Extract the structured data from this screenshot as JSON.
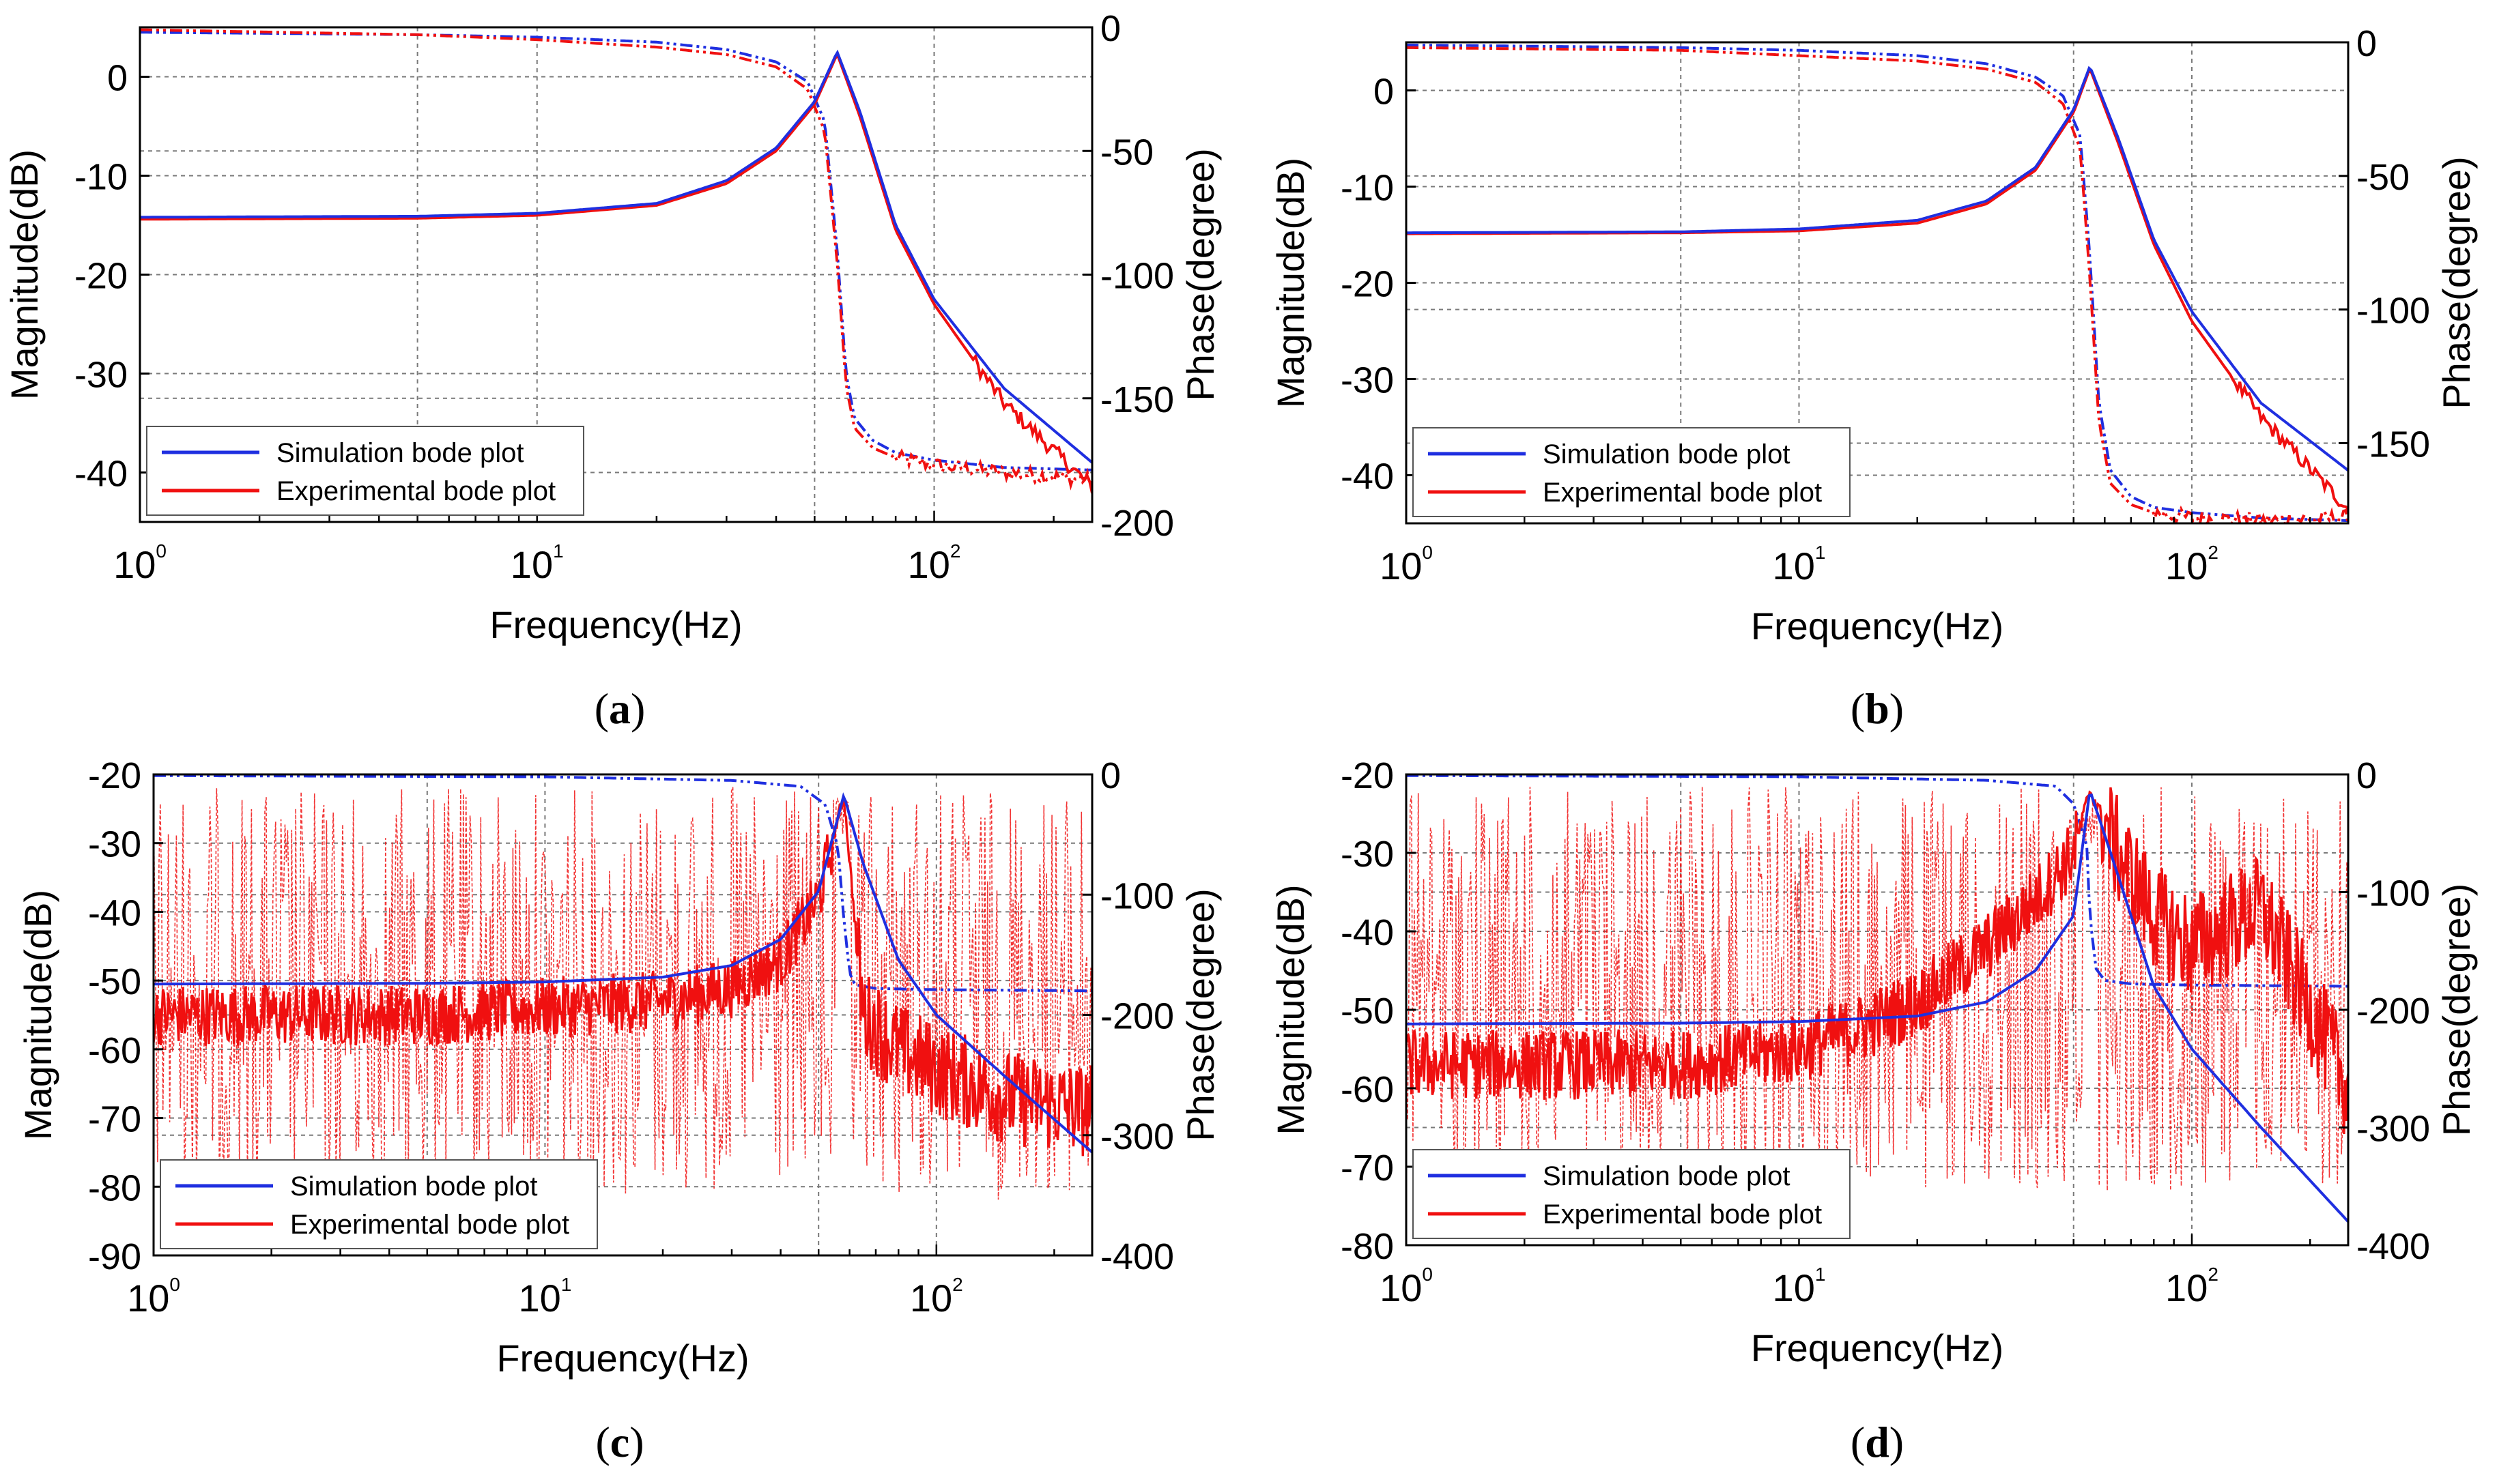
{
  "figure": {
    "colors": {
      "simulation": "#1f2fe0",
      "experimental": "#f01010",
      "grid": "#7a7a7a",
      "axis": "#000000"
    },
    "panels": [
      {
        "caption": "(a)",
        "caption_letter": "a"
      },
      {
        "caption": "(b)",
        "caption_letter": "b"
      },
      {
        "caption": "(c)",
        "caption_letter": "c"
      },
      {
        "caption": "(d)",
        "caption_letter": "d"
      }
    ]
  },
  "chart_data": [
    {
      "panel": "a",
      "type": "line",
      "xscale": "log",
      "xlim": [
        1,
        250
      ],
      "x_ticks": [
        "10^0",
        "10^1",
        "10^2"
      ],
      "xlabel": "Frequency(Hz)",
      "ylabel_left": "Magnitude(dB)",
      "ylabel_right": "Phase(degree)",
      "ylim_left": [
        -45,
        5
      ],
      "ylim_right": [
        -200,
        0
      ],
      "yticks_left": [
        0,
        -10,
        -20,
        -30,
        -40
      ],
      "yticks_right": [
        0,
        -50,
        -100,
        -150,
        -200
      ],
      "resonance_hz": 57,
      "legend": {
        "placement": "bottom-left",
        "entries": [
          "Simulation bode plot",
          "Experimental bode plot"
        ]
      },
      "series": [
        {
          "name": "Simulation bode plot",
          "quantity": "magnitude",
          "x": [
            1,
            5,
            10,
            20,
            30,
            40,
            50,
            57,
            65,
            80,
            100,
            150,
            250
          ],
          "values": [
            -14.2,
            -14.1,
            -13.8,
            -12.8,
            -10.5,
            -7.2,
            -2.5,
            2.5,
            -3.5,
            -15,
            -22.5,
            -31.5,
            -39
          ]
        },
        {
          "name": "Experimental bode plot",
          "quantity": "magnitude",
          "x": [
            1,
            5,
            10,
            20,
            30,
            40,
            50,
            57,
            65,
            80,
            100,
            150,
            250
          ],
          "values": [
            -14.4,
            -14.3,
            -14.0,
            -13.0,
            -10.8,
            -7.5,
            -2.8,
            2.3,
            -4.0,
            -15.5,
            -23,
            -33,
            -41.5
          ]
        },
        {
          "name": "Simulation bode plot",
          "quantity": "phase",
          "x": [
            1,
            5,
            10,
            20,
            30,
            40,
            48,
            53,
            57,
            60,
            63,
            70,
            80,
            100,
            150,
            250
          ],
          "values": [
            -2,
            -3,
            -4,
            -6,
            -9,
            -14,
            -22,
            -38,
            -90,
            -140,
            -158,
            -167,
            -172,
            -175,
            -178,
            -179
          ]
        },
        {
          "name": "Experimental bode plot",
          "quantity": "phase",
          "x": [
            1,
            5,
            10,
            20,
            30,
            40,
            48,
            53,
            57,
            60,
            63,
            70,
            80,
            100,
            150,
            250
          ],
          "values": [
            -1,
            -3,
            -5,
            -8,
            -11,
            -16,
            -25,
            -42,
            -95,
            -145,
            -162,
            -170,
            -174,
            -177,
            -180,
            -183
          ]
        }
      ]
    },
    {
      "panel": "b",
      "type": "line",
      "xscale": "log",
      "xlim": [
        1,
        250
      ],
      "x_ticks": [
        "10^0",
        "10^1",
        "10^2"
      ],
      "xlabel": "Frequency(Hz)",
      "ylabel_left": "Magnitude(dB)",
      "ylabel_right": "Phase(degree)",
      "ylim_left": [
        -45,
        5
      ],
      "ylim_right": [
        -180,
        0
      ],
      "yticks_left": [
        0,
        -10,
        -20,
        -30,
        -40
      ],
      "yticks_right": [
        0,
        -50,
        -100,
        -150
      ],
      "resonance_hz": 55,
      "legend": {
        "placement": "bottom-left",
        "entries": [
          "Simulation bode plot",
          "Experimental bode plot"
        ]
      },
      "series": [
        {
          "name": "Simulation bode plot",
          "quantity": "magnitude",
          "x": [
            1,
            5,
            10,
            20,
            30,
            40,
            50,
            55,
            65,
            80,
            100,
            150,
            250
          ],
          "values": [
            -14.8,
            -14.7,
            -14.4,
            -13.5,
            -11.5,
            -8,
            -2,
            2.5,
            -5,
            -15.5,
            -23,
            -32.5,
            -39.5
          ]
        },
        {
          "name": "Experimental bode plot",
          "quantity": "magnitude",
          "x": [
            1,
            5,
            10,
            20,
            30,
            40,
            50,
            55,
            65,
            80,
            100,
            150,
            250
          ],
          "values": [
            -14.9,
            -14.8,
            -14.6,
            -13.8,
            -11.8,
            -8.3,
            -2.3,
            2.3,
            -5.5,
            -16,
            -24,
            -34,
            -43.5
          ]
        },
        {
          "name": "Simulation bode plot",
          "quantity": "phase",
          "x": [
            1,
            5,
            10,
            20,
            30,
            40,
            47,
            52,
            55,
            58,
            62,
            70,
            80,
            100,
            150,
            250
          ],
          "values": [
            -1,
            -2,
            -3,
            -5,
            -8,
            -13,
            -20,
            -35,
            -80,
            -135,
            -160,
            -170,
            -174,
            -176,
            -178,
            -179
          ]
        },
        {
          "name": "Experimental bode plot",
          "quantity": "phase",
          "x": [
            1,
            5,
            10,
            20,
            30,
            40,
            47,
            52,
            55,
            58,
            62,
            70,
            80,
            100,
            150,
            250
          ],
          "values": [
            -2,
            -3,
            -5,
            -7,
            -10,
            -15,
            -23,
            -40,
            -88,
            -142,
            -165,
            -173,
            -176,
            -178,
            -179,
            -178
          ]
        }
      ]
    },
    {
      "panel": "c",
      "type": "line",
      "xscale": "log",
      "xlim": [
        1,
        250
      ],
      "x_ticks": [
        "10^0",
        "10^1",
        "10^2"
      ],
      "xlabel": "Frequency(Hz)",
      "ylabel_left": "Magnitude(dB)",
      "ylabel_right": "Phase(degree)",
      "ylim_left": [
        -90,
        -20
      ],
      "ylim_right": [
        -400,
        0
      ],
      "yticks_left": [
        -20,
        -30,
        -40,
        -50,
        -60,
        -70,
        -80,
        -90
      ],
      "yticks_right": [
        0,
        -100,
        -200,
        -300,
        -400
      ],
      "resonance_hz": 58,
      "legend": {
        "placement": "bottom-left",
        "entries": [
          "Simulation bode plot",
          "Experimental bode plot"
        ]
      },
      "series": [
        {
          "name": "Simulation bode plot",
          "quantity": "magnitude",
          "x": [
            1,
            5,
            10,
            20,
            30,
            40,
            50,
            58,
            65,
            80,
            100,
            150,
            250
          ],
          "values": [
            -50.5,
            -50.4,
            -50.2,
            -49.5,
            -47.8,
            -44,
            -37,
            -23,
            -33,
            -47,
            -55,
            -64,
            -75
          ]
        },
        {
          "name": "Experimental bode plot",
          "quantity": "magnitude",
          "x": [
            1,
            5,
            10,
            20,
            30,
            40,
            50,
            58,
            65,
            80,
            100,
            150,
            250
          ],
          "values": [
            -55,
            -55,
            -54,
            -53,
            -51,
            -47,
            -38,
            -23,
            -55,
            -60,
            -63,
            -67,
            -69
          ]
        },
        {
          "name": "Simulation bode plot",
          "quantity": "phase",
          "x": [
            1,
            10,
            30,
            45,
            52,
            56,
            58,
            60,
            62,
            70,
            100,
            250
          ],
          "values": [
            -1,
            -2,
            -5,
            -10,
            -25,
            -60,
            -120,
            -165,
            -175,
            -178,
            -179,
            -180
          ]
        },
        {
          "name": "Experimental bode plot",
          "quantity": "phase",
          "note": "dashed, noisy; oscillates broadly between 0 and -360 degrees",
          "x": [
            1,
            10,
            40,
            58,
            100,
            250
          ],
          "values": [
            -180,
            -180,
            -180,
            -100,
            -180,
            -180
          ]
        }
      ]
    },
    {
      "panel": "d",
      "type": "line",
      "xscale": "log",
      "xlim": [
        1,
        250
      ],
      "x_ticks": [
        "10^0",
        "10^1",
        "10^2"
      ],
      "xlabel": "Frequency(Hz)",
      "ylabel_left": "Magnitude(dB)",
      "ylabel_right": "Phase(degree)",
      "ylim_left": [
        -80,
        -20
      ],
      "ylim_right": [
        -400,
        0
      ],
      "yticks_left": [
        -20,
        -30,
        -40,
        -50,
        -60,
        -70,
        -80
      ],
      "yticks_right": [
        0,
        -100,
        -200,
        -300,
        -400
      ],
      "resonance_hz": 55,
      "legend": {
        "placement": "bottom-left",
        "entries": [
          "Simulation bode plot",
          "Experimental bode plot"
        ]
      },
      "series": [
        {
          "name": "Simulation bode plot",
          "quantity": "magnitude",
          "x": [
            1,
            5,
            10,
            20,
            30,
            40,
            50,
            55,
            65,
            80,
            100,
            150,
            250
          ],
          "values": [
            -51.8,
            -51.7,
            -51.5,
            -50.8,
            -49,
            -45,
            -38,
            -22,
            -33,
            -47,
            -55,
            -65,
            -77
          ]
        },
        {
          "name": "Experimental bode plot",
          "quantity": "magnitude",
          "x": [
            1,
            5,
            10,
            15,
            20,
            30,
            40,
            50,
            55,
            65,
            80,
            100,
            150,
            250
          ],
          "values": [
            -57,
            -57,
            -55,
            -52,
            -49,
            -42,
            -36,
            -30,
            -22,
            -30,
            -38,
            -42,
            -37,
            -60
          ]
        },
        {
          "name": "Simulation bode plot",
          "quantity": "phase",
          "x": [
            1,
            10,
            30,
            45,
            50,
            54,
            55,
            57,
            60,
            70,
            100,
            250
          ],
          "values": [
            -1,
            -2,
            -5,
            -10,
            -25,
            -60,
            -120,
            -165,
            -175,
            -178,
            -179,
            -180
          ]
        },
        {
          "name": "Experimental bode plot",
          "quantity": "phase",
          "note": "dashed, noisy; oscillates broadly between 0 and -350 degrees",
          "x": [
            1,
            10,
            40,
            55,
            100,
            250
          ],
          "values": [
            -180,
            -180,
            -180,
            -100,
            -180,
            -180
          ]
        }
      ]
    }
  ]
}
